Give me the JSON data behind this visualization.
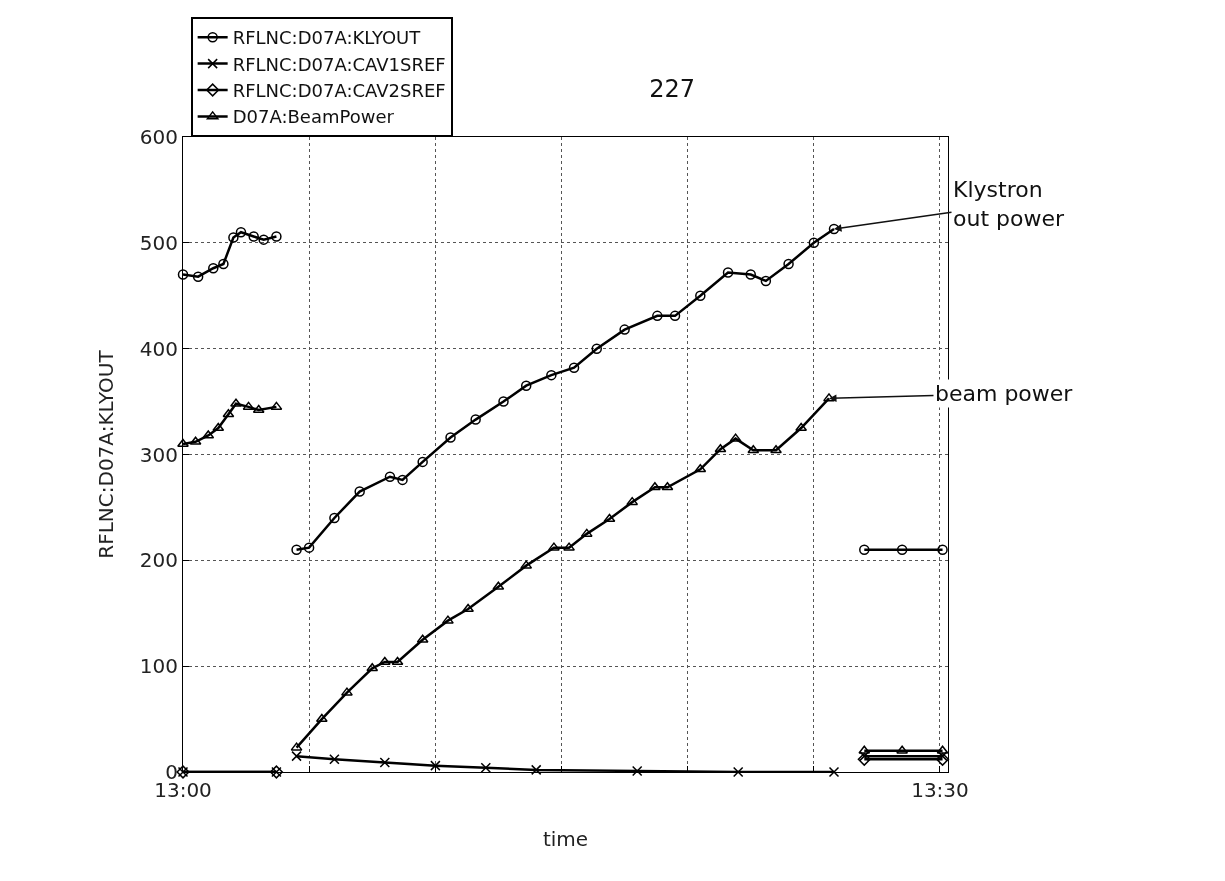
{
  "chart_data": {
    "type": "line",
    "title": "227",
    "xlabel": "time",
    "ylabel": "RFLNC:D07A:KLYOUT",
    "xlim": [
      13.0,
      13.5053
    ],
    "xticks": [
      {
        "value": 13.0,
        "label": "13:00"
      },
      {
        "value": 13.0833,
        "label": null
      },
      {
        "value": 13.1667,
        "label": null
      },
      {
        "value": 13.25,
        "label": null
      },
      {
        "value": 13.3333,
        "label": null
      },
      {
        "value": 13.4167,
        "label": null
      },
      {
        "value": 13.5,
        "label": "13:30"
      }
    ],
    "ylim": [
      0,
      600
    ],
    "yticks": [
      0,
      100,
      200,
      300,
      400,
      500,
      600
    ],
    "grid": true,
    "legend": "top left",
    "line_style": "solid",
    "series": [
      {
        "name": "RFLNC:D07A:KLYOUT",
        "color": "#000000",
        "marker": "circle",
        "x": [
          13.0,
          13.01,
          13.02,
          13.0267,
          13.0333,
          13.0383,
          13.0467,
          13.0533,
          13.0617,
          13.0683,
          13.075,
          13.0833,
          13.1,
          13.1167,
          13.1367,
          13.145,
          13.1583,
          13.1767,
          13.1933,
          13.2117,
          13.2267,
          13.2433,
          13.2583,
          13.2733,
          13.2917,
          13.3133,
          13.325,
          13.3417,
          13.36,
          13.375,
          13.385,
          13.4,
          13.4167,
          13.43,
          13.44,
          13.45,
          13.475,
          13.5017
        ],
        "values": [
          470,
          468,
          476,
          480,
          505,
          510,
          506,
          503,
          506,
          null,
          210,
          212,
          240,
          265,
          279,
          276,
          293,
          316,
          333,
          350,
          365,
          375,
          382,
          400,
          418,
          431,
          431,
          450,
          472,
          470,
          464,
          480,
          500,
          513,
          null,
          210,
          210,
          210
        ]
      },
      {
        "name": "RFLNC:D07A:CAV1SREF",
        "color": "#000000",
        "marker": "cross",
        "x": [
          13.0,
          13.0617,
          13.0683,
          13.075,
          13.1,
          13.1333,
          13.1667,
          13.2,
          13.2333,
          13.3,
          13.3667,
          13.43,
          13.44,
          13.45,
          13.5017
        ],
        "values": [
          0,
          0,
          null,
          15,
          12,
          9,
          6,
          4,
          2,
          1,
          0,
          0,
          null,
          15,
          15
        ]
      },
      {
        "name": "RFLNC:D07A:CAV2SREF",
        "color": "#000000",
        "marker": "diamond",
        "x": [
          13.0,
          13.0617,
          13.0683,
          13.075,
          13.1333,
          13.2333,
          13.43,
          13.44,
          13.45,
          13.5017
        ],
        "values": [
          0,
          0,
          null,
          null,
          null,
          null,
          null,
          null,
          12,
          12
        ]
      },
      {
        "name": "D07A:BeamPower",
        "color": "#000000",
        "marker": "triangle",
        "x": [
          13.0,
          13.0083,
          13.0167,
          13.0233,
          13.03,
          13.035,
          13.0433,
          13.05,
          13.0617,
          13.0683,
          13.075,
          13.0917,
          13.1083,
          13.125,
          13.1333,
          13.1417,
          13.1583,
          13.175,
          13.1883,
          13.2083,
          13.2267,
          13.245,
          13.255,
          13.2667,
          13.2817,
          13.2967,
          13.3117,
          13.32,
          13.3417,
          13.355,
          13.365,
          13.3767,
          13.3917,
          13.4083,
          13.4267,
          13.44,
          13.45,
          13.475,
          13.5017
        ],
        "values": [
          310,
          312,
          318,
          325,
          338,
          348,
          345,
          342,
          345,
          null,
          23,
          50,
          75,
          98,
          104,
          104,
          125,
          143,
          154,
          175,
          195,
          212,
          212,
          225,
          239,
          255,
          269,
          269,
          286,
          305,
          315,
          304,
          304,
          325,
          353,
          null,
          20,
          20,
          20
        ]
      }
    ],
    "annotations": [
      {
        "text": "Klystron\nout power",
        "x": 13.43,
        "y": 513
      },
      {
        "text": "beam power",
        "x": 13.4267,
        "y": 353
      }
    ]
  }
}
